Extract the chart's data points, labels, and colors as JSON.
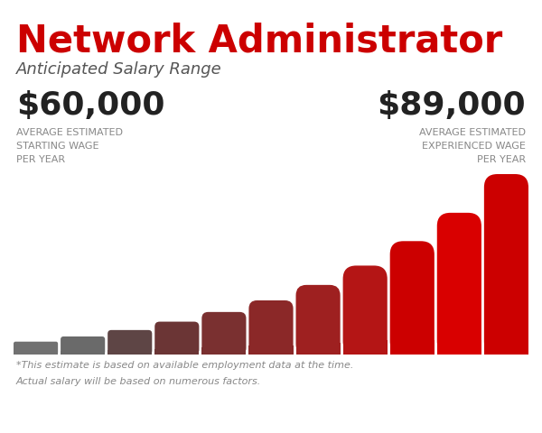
{
  "title": "Network Administrator",
  "subtitle": "Anticipated Salary Range",
  "left_value": "$60,000",
  "left_label_lines": [
    "AVERAGE ESTIMATED",
    "STARTING WAGE",
    "PER YEAR"
  ],
  "right_value": "$89,000",
  "right_label_lines": [
    "AVERAGE ESTIMATED",
    "EXPERIENCED WAGE",
    "PER YEAR"
  ],
  "footnote_line1": "*This estimate is based on available employment data at the time.",
  "footnote_line2": "Actual salary will be based on numerous factors.",
  "bar_colors": [
    "#717171",
    "#6a6a6a",
    "#5e4545",
    "#6b3535",
    "#7a3030",
    "#8b2828",
    "#9e2020",
    "#b41515",
    "#cc0000",
    "#d90000",
    "#cc0000"
  ],
  "bar_heights": [
    1.0,
    1.4,
    1.9,
    2.55,
    3.3,
    4.2,
    5.4,
    6.9,
    8.8,
    11.0,
    14.0
  ],
  "background_color": "#ffffff",
  "title_color": "#cc0000",
  "text_color": "#222222",
  "label_color": "#888888",
  "footnote_color": "#888888"
}
